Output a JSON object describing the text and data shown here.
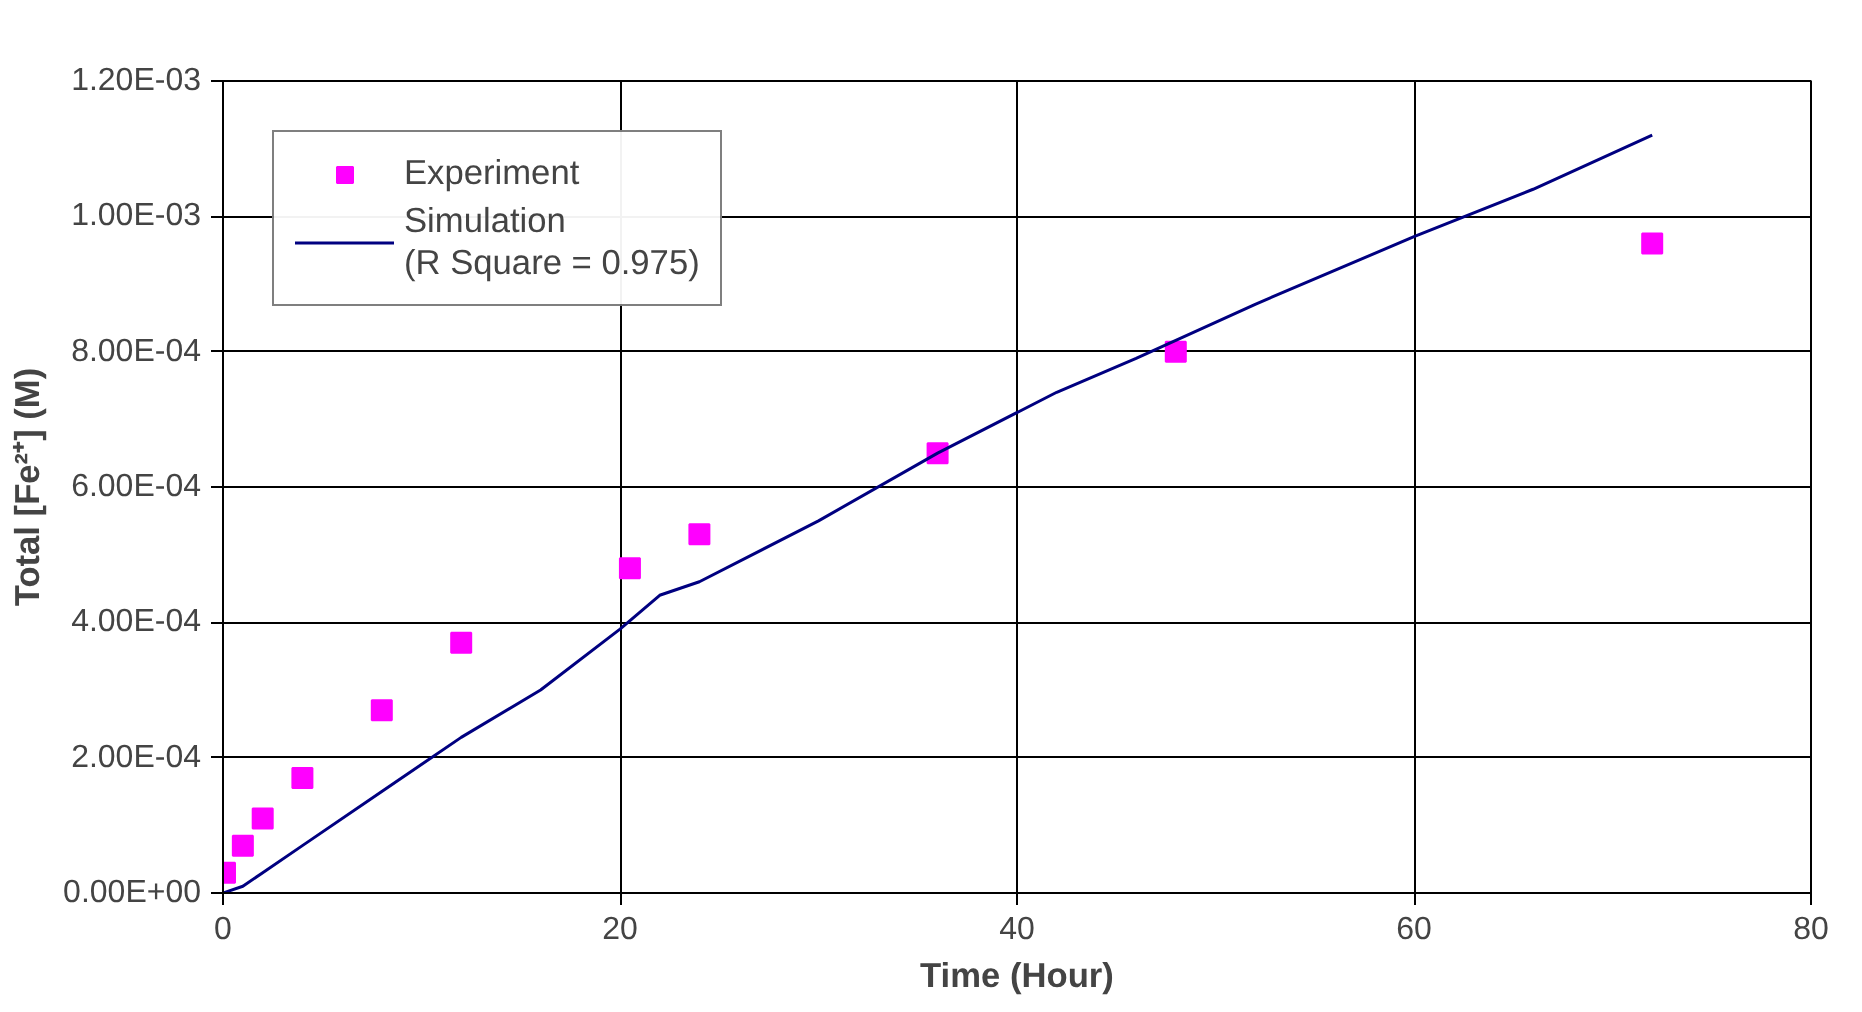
{
  "chart_data": {
    "type": "scatter",
    "xlabel": "Time (Hour)",
    "ylabel": "Total [Fe²⁺] (M)",
    "xlim": [
      0,
      80
    ],
    "xticks": [
      0,
      20,
      40,
      60,
      80
    ],
    "ylim": [
      0,
      0.0012
    ],
    "yticks": [
      {
        "value": 0,
        "label": "0.00E+00"
      },
      {
        "value": 0.0002,
        "label": "2.00E-04"
      },
      {
        "value": 0.0004,
        "label": "4.00E-04"
      },
      {
        "value": 0.0006,
        "label": "6.00E-04"
      },
      {
        "value": 0.0008,
        "label": "8.00E-04"
      },
      {
        "value": 0.001,
        "label": "1.00E-03"
      },
      {
        "value": 0.0012,
        "label": "1.20E-03"
      }
    ],
    "grid": true,
    "legend": "top left",
    "series": [
      {
        "name": "Experiment",
        "marker": "square",
        "color": "#ff00ff",
        "x": [
          0.1,
          1,
          2,
          4,
          8,
          12,
          20.5,
          24,
          36,
          48,
          72
        ],
        "values": [
          3e-05,
          7e-05,
          0.00011,
          0.00017,
          0.00027,
          0.00037,
          0.00048,
          0.00053,
          0.00065,
          0.0008,
          0.00096
        ]
      },
      {
        "name": "Simulation\n(R Square = 0.975)",
        "type": "line",
        "marker": "none",
        "line_style": "solid",
        "color": "#000080",
        "x": [
          0,
          1,
          2,
          4,
          8,
          12,
          16,
          20,
          22,
          24,
          30,
          36,
          42,
          46,
          52,
          60,
          66,
          72
        ],
        "values": [
          0,
          1e-05,
          3e-05,
          7e-05,
          0.00015,
          0.00023,
          0.0003,
          0.00039,
          0.00044,
          0.00046,
          0.00055,
          0.00065,
          0.00074,
          0.00079,
          0.00087,
          0.00097,
          0.00104,
          0.00112
        ]
      }
    ]
  }
}
